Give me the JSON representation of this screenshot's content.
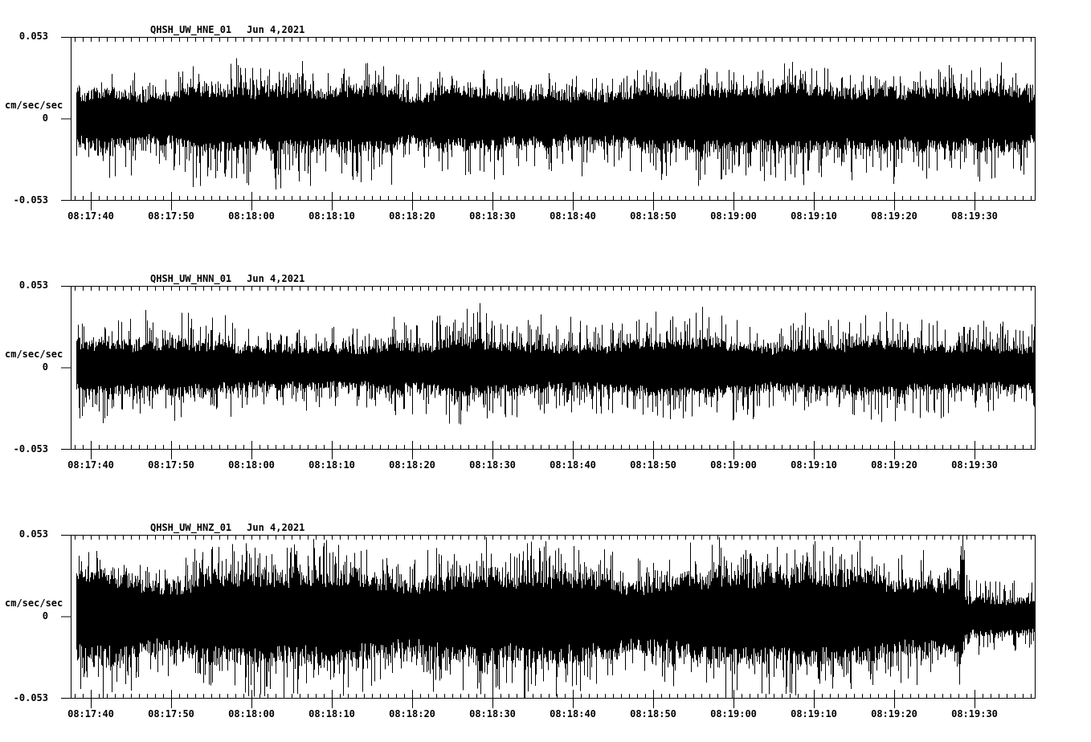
{
  "page": {
    "background": "#ffffff",
    "ink": "#000000"
  },
  "chart_data": [
    {
      "type": "line",
      "kind": "seismogram-waveform",
      "title": "QHSH_UW_HNE_01",
      "date_label": "Jun 4,2021",
      "ylabel": "cm/sec/sec",
      "ylim": [
        -0.053,
        0.053
      ],
      "y_tick_labels": [
        "0.053",
        "0",
        "-0.053"
      ],
      "x_tick_labels": [
        "08:17:40",
        "08:17:50",
        "08:18:00",
        "08:18:10",
        "08:18:20",
        "08:18:30",
        "08:18:40",
        "08:18:50",
        "08:19:00",
        "08:19:10",
        "08:19:20",
        "08:19:30"
      ],
      "x_major_interval_s": 10,
      "x_minor_interval_s": 1,
      "first_tick_offset_s": 2.5,
      "duration_s": 120,
      "grid": false,
      "envelope_segments": [
        {
          "t0": 0,
          "t1": 120,
          "core": 0.017,
          "peak_up": 0.032,
          "peak_dn": 0.038
        }
      ],
      "spikes": [
        {
          "t": 25.5,
          "v": -0.046
        }
      ]
    },
    {
      "type": "line",
      "kind": "seismogram-waveform",
      "title": "QHSH_UW_HNN_01",
      "date_label": "Jun 4,2021",
      "ylabel": "cm/sec/sec",
      "ylim": [
        -0.053,
        0.053
      ],
      "y_tick_labels": [
        "0.053",
        "0",
        "-0.053"
      ],
      "x_tick_labels": [
        "08:17:40",
        "08:17:50",
        "08:18:00",
        "08:18:10",
        "08:18:20",
        "08:18:30",
        "08:18:40",
        "08:18:50",
        "08:19:00",
        "08:19:10",
        "08:19:20",
        "08:19:30"
      ],
      "x_major_interval_s": 10,
      "x_minor_interval_s": 1,
      "first_tick_offset_s": 2.5,
      "duration_s": 120,
      "grid": false,
      "envelope_segments": [
        {
          "t0": 0,
          "t1": 120,
          "core": 0.0145,
          "peak_up": 0.034,
          "peak_dn": 0.032
        }
      ],
      "spikes": [
        {
          "t": 50.9,
          "v": 0.042
        }
      ]
    },
    {
      "type": "line",
      "kind": "seismogram-waveform",
      "title": "QHSH_UW_HNZ_01",
      "date_label": "Jun 4,2021",
      "ylabel": "cm/sec/sec",
      "ylim": [
        -0.053,
        0.053
      ],
      "y_tick_labels": [
        "0.053",
        "0",
        "-0.053"
      ],
      "x_tick_labels": [
        "08:17:40",
        "08:17:50",
        "08:18:00",
        "08:18:10",
        "08:18:20",
        "08:18:30",
        "08:18:40",
        "08:18:50",
        "08:19:00",
        "08:19:10",
        "08:19:20",
        "08:19:30"
      ],
      "x_major_interval_s": 10,
      "x_minor_interval_s": 1,
      "first_tick_offset_s": 2.5,
      "duration_s": 120,
      "grid": false,
      "envelope_segments": [
        {
          "t0": 0,
          "t1": 104,
          "core": 0.024,
          "peak_up": 0.044,
          "peak_dn": 0.048
        },
        {
          "t0": 104,
          "t1": 111.3,
          "core": 0.026,
          "peak_up": 0.05,
          "peak_dn": 0.048
        },
        {
          "t0": 111.3,
          "t1": 120,
          "core": 0.013,
          "peak_up": 0.03,
          "peak_dn": 0.027
        }
      ],
      "spikes": [
        {
          "t": 51.0,
          "v": -0.0505
        },
        {
          "t": 110.6,
          "v": -0.044
        },
        {
          "t": 110.8,
          "v": 0.046
        },
        {
          "t": 111.0,
          "v": 0.053
        }
      ]
    }
  ]
}
